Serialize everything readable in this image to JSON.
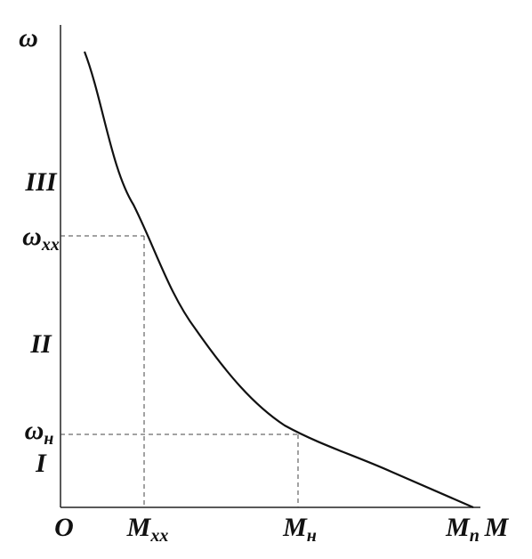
{
  "axes": {
    "y": {
      "text": "ω"
    },
    "x": {
      "text": "M"
    },
    "origin": {
      "text": "O"
    }
  },
  "zones": [
    {
      "text": "III"
    },
    {
      "text": "II"
    },
    {
      "text": "I"
    }
  ],
  "y_labels": [
    {
      "text": "ω",
      "sub": "xx"
    },
    {
      "text": "ω",
      "sub": "н"
    }
  ],
  "x_labels": [
    {
      "text": "M",
      "sub": "xx"
    },
    {
      "text": "M",
      "sub": "н"
    },
    {
      "text": "M",
      "sub": "п"
    }
  ]
}
